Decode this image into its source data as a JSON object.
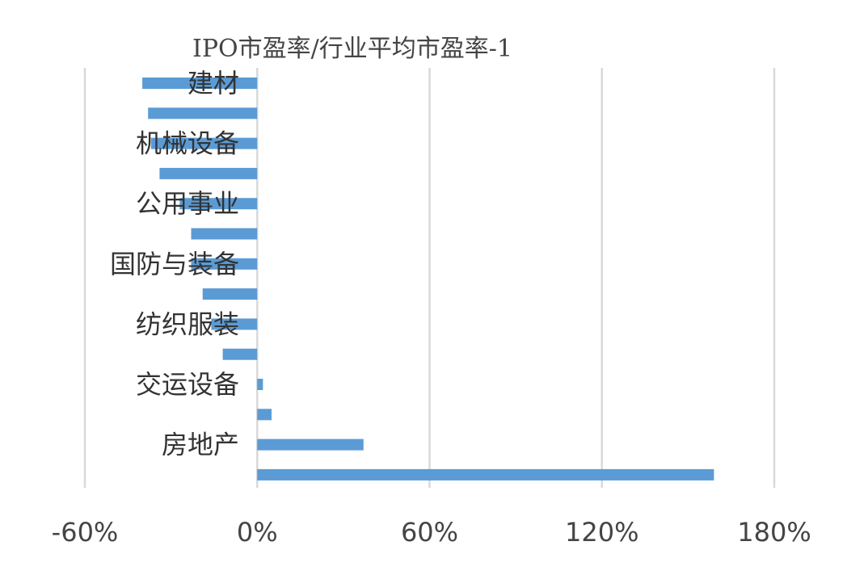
{
  "chart_data": {
    "type": "bar",
    "orientation": "horizontal",
    "title": "IPO市盈率/行业平均市盈率-1",
    "bar_color": "#5b9bd5",
    "grid": true,
    "legend": "none",
    "xlim": [
      -60,
      180
    ],
    "xticks": [
      {
        "value": -60,
        "label": "-60%"
      },
      {
        "value": 0,
        "label": "0%"
      },
      {
        "value": 60,
        "label": "60%"
      },
      {
        "value": 120,
        "label": "120%"
      },
      {
        "value": 180,
        "label": "180%"
      }
    ],
    "categories": [
      "建材",
      "",
      "机械设备",
      "",
      "公用事业",
      "",
      "国防与装备",
      "",
      "纺织服装",
      "",
      "交运设备",
      "",
      "房地产",
      ""
    ],
    "values": [
      -40,
      -38,
      -37,
      -34,
      -27,
      -23,
      -23,
      -19,
      -16,
      -12,
      2,
      5,
      37,
      159
    ]
  }
}
